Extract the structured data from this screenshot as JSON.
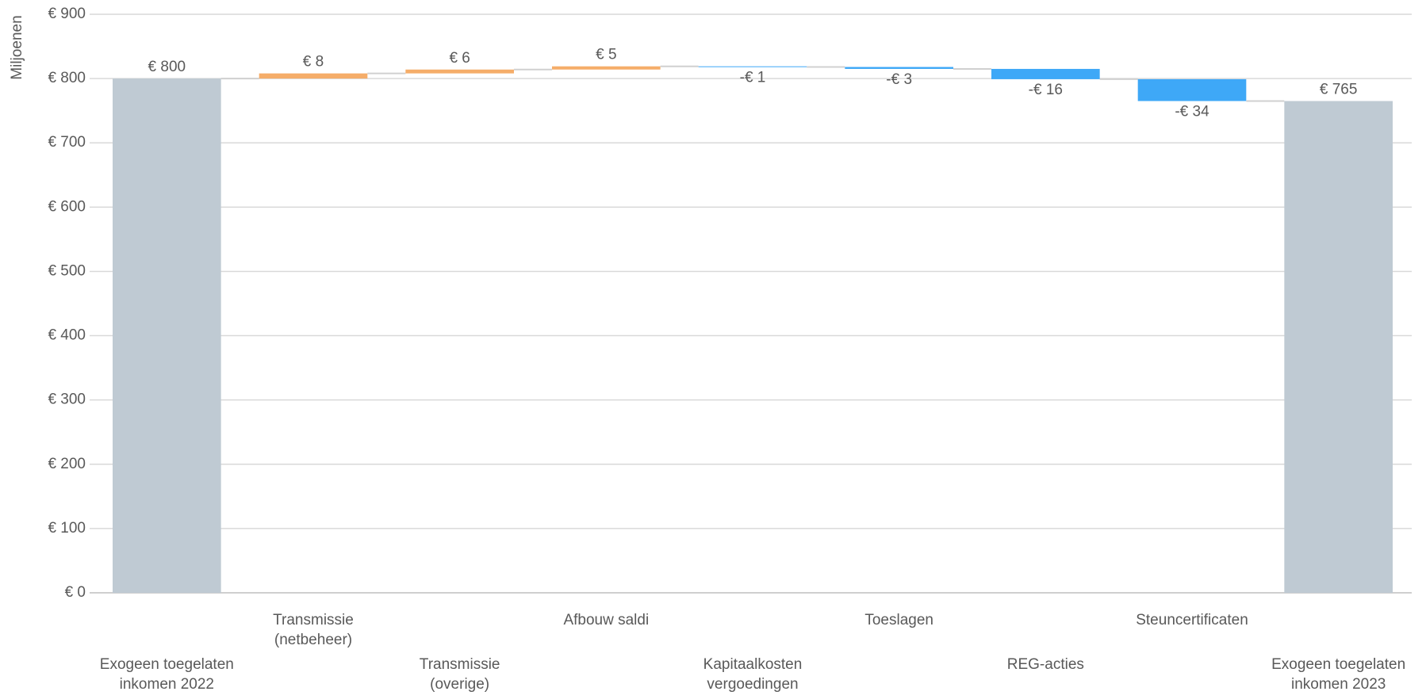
{
  "chart_data": {
    "type": "waterfall",
    "y_label": "Miljoenen",
    "categories": [
      "Exogeen toegelaten\ninkomen 2022",
      "Transmissie\n(netbeheer)",
      "Transmissie\n(overige)",
      "Afbouw saldi",
      "Kapitaalkosten\nvergoedingen",
      "Toeslagen",
      "REG-acties",
      "Steuncertificaten",
      "Exogeen toegelaten\ninkomen 2023"
    ],
    "values": [
      800,
      8,
      6,
      5,
      -1,
      -3,
      -16,
      -34,
      765
    ],
    "value_labels": [
      "€ 800",
      "€ 8",
      "€ 6",
      "€ 5",
      "-€ 1",
      "-€ 3",
      "-€ 16",
      "-€ 34",
      "€ 765"
    ],
    "measures": [
      "total",
      "relative",
      "relative",
      "relative",
      "relative",
      "relative",
      "relative",
      "relative",
      "total"
    ],
    "colors": {
      "total": "#bfcad3",
      "increase": "#f5ad69",
      "decrease": "#3ea8f7"
    },
    "ylim": [
      0,
      900
    ],
    "yticks": [
      {
        "value": 0,
        "label": "€ 0"
      },
      {
        "value": 100,
        "label": "€ 100"
      },
      {
        "value": 200,
        "label": "€ 200"
      },
      {
        "value": 300,
        "label": "€ 300"
      },
      {
        "value": 400,
        "label": "€ 400"
      },
      {
        "value": 500,
        "label": "€ 500"
      },
      {
        "value": 600,
        "label": "€ 600"
      },
      {
        "value": 700,
        "label": "€ 700"
      },
      {
        "value": 800,
        "label": "€ 800"
      },
      {
        "value": 900,
        "label": "€ 900"
      }
    ],
    "grid": true
  }
}
